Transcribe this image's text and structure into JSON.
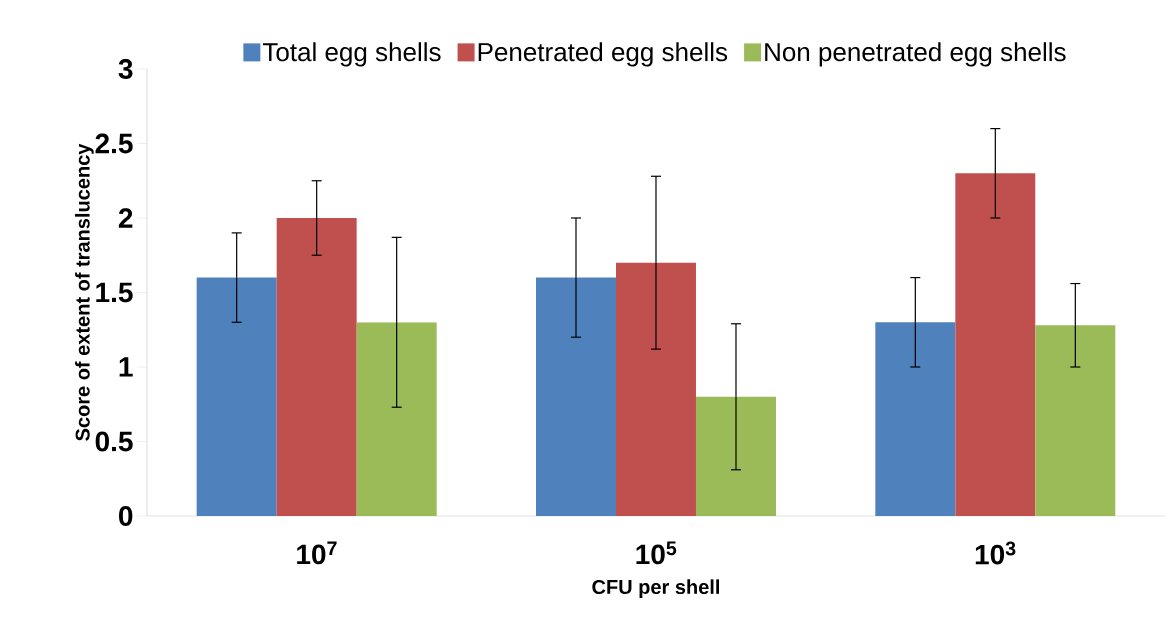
{
  "chart_data": {
    "type": "bar",
    "xlabel": "CFU per shell",
    "ylabel": "Score of extent of translucency",
    "categories": [
      "10$^{7}$",
      "10$^{5}$",
      "10$^{3}$"
    ],
    "series": [
      {
        "name": "Total egg shells",
        "color": "#4f81bd",
        "values": [
          1.6,
          1.6,
          1.3
        ],
        "errors": [
          0.3,
          0.4,
          0.3
        ]
      },
      {
        "name": "Penetrated egg shells",
        "color": "#c0504d",
        "values": [
          2.0,
          1.7,
          2.3
        ],
        "errors": [
          0.25,
          0.58,
          0.3
        ]
      },
      {
        "name": "Non penetrated egg shells",
        "color": "#9bbb59",
        "values": [
          1.3,
          0.8,
          1.28
        ],
        "errors": [
          0.57,
          0.49,
          0.28
        ]
      }
    ],
    "ylim": [
      0,
      3
    ],
    "yticks": [
      0,
      0.5,
      1,
      1.5,
      2,
      2.5,
      3
    ],
    "grid": false,
    "legend": "top"
  }
}
